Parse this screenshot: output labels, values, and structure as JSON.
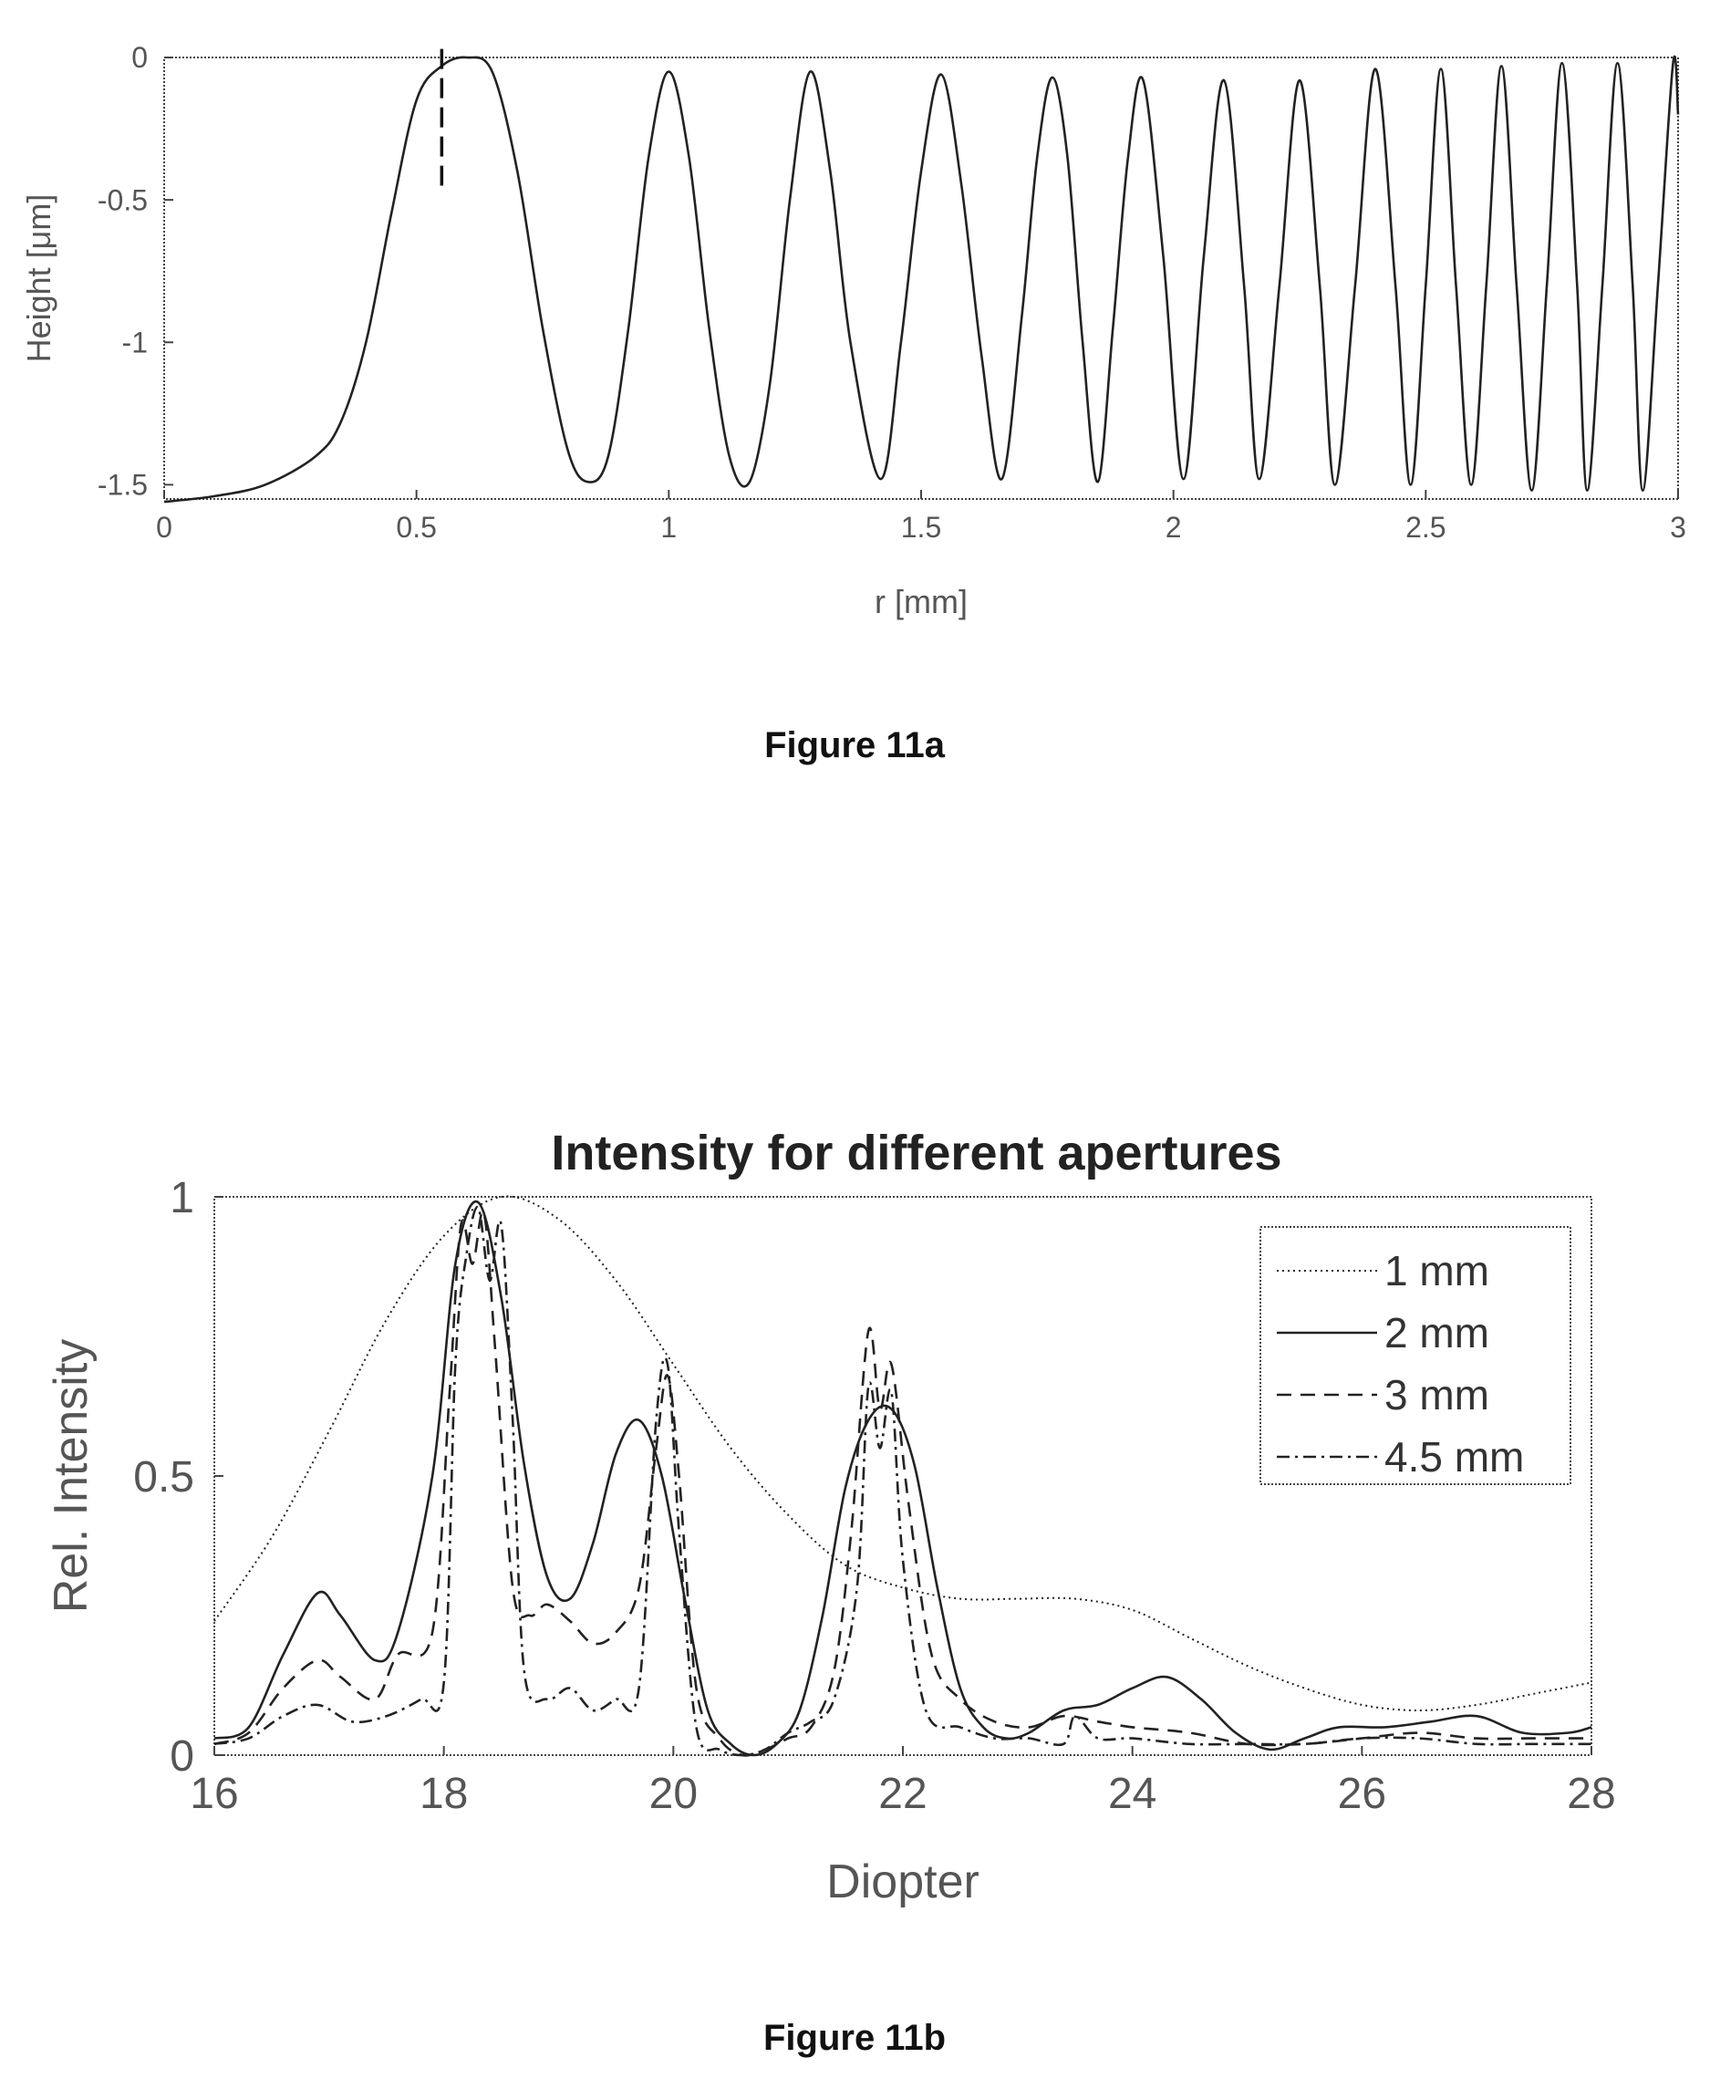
{
  "figures": [
    {
      "caption": "Figure 11a"
    },
    {
      "caption": "Figure 11b"
    }
  ],
  "chart_data": [
    {
      "type": "line",
      "title": "",
      "xlabel": "r [mm]",
      "ylabel": "Height [μm]",
      "xlim": [
        0,
        3
      ],
      "ylim": [
        -1.55,
        0
      ],
      "xticks": [
        0,
        0.5,
        1,
        1.5,
        2,
        2.5,
        3
      ],
      "xtick_labels": [
        "0",
        "0.5",
        "1",
        "1.5",
        "2",
        "2.5",
        "3"
      ],
      "yticks": [
        0,
        -0.5,
        -1,
        -1.5
      ],
      "ytick_labels": [
        "0",
        "-0.5",
        "-1",
        "-1.5"
      ],
      "grid": false,
      "peaks_x": [
        0.6,
        1.0,
        1.28,
        1.54,
        1.76,
        1.94,
        2.1,
        2.25,
        2.4,
        2.53,
        2.65,
        2.77,
        2.88,
        2.99
      ],
      "troughs_x": [
        0.84,
        1.16,
        1.42,
        1.66,
        1.85,
        2.02,
        2.17,
        2.32,
        2.47,
        2.59,
        2.71,
        2.82,
        2.93
      ],
      "marker_x": 0.55,
      "marker_y_range": [
        -0.45,
        0.03
      ],
      "series": [
        {
          "x": [
            0,
            0.1,
            0.2,
            0.3,
            0.35,
            0.4,
            0.45,
            0.5,
            0.55,
            0.6,
            0.65,
            0.7,
            0.75,
            0.8,
            0.84,
            0.88,
            0.92,
            0.96,
            1.0,
            1.04,
            1.08,
            1.12,
            1.16,
            1.2,
            1.24,
            1.28,
            1.32,
            1.36,
            1.42,
            1.46,
            1.5,
            1.54,
            1.58,
            1.62,
            1.66,
            1.7,
            1.73,
            1.76,
            1.79,
            1.82,
            1.85,
            1.88,
            1.91,
            1.94,
            1.98,
            2.02,
            2.06,
            2.1,
            2.14,
            2.17,
            2.21,
            2.25,
            2.29,
            2.32,
            2.36,
            2.4,
            2.44,
            2.47,
            2.5,
            2.53,
            2.56,
            2.59,
            2.62,
            2.65,
            2.68,
            2.71,
            2.74,
            2.77,
            2.8,
            2.82,
            2.85,
            2.88,
            2.91,
            2.93,
            2.96,
            2.99,
            3.0
          ],
          "y": [
            -1.56,
            -1.54,
            -1.5,
            -1.4,
            -1.28,
            -1.0,
            -0.55,
            -0.15,
            -0.03,
            0.0,
            -0.05,
            -0.4,
            -0.95,
            -1.38,
            -1.49,
            -1.4,
            -0.95,
            -0.35,
            -0.05,
            -0.35,
            -0.95,
            -1.4,
            -1.49,
            -1.15,
            -0.5,
            -0.05,
            -0.4,
            -1.0,
            -1.48,
            -1.0,
            -0.4,
            -0.06,
            -0.45,
            -1.05,
            -1.48,
            -0.9,
            -0.35,
            -0.07,
            -0.35,
            -1.0,
            -1.49,
            -0.95,
            -0.35,
            -0.08,
            -0.7,
            -1.48,
            -0.7,
            -0.08,
            -0.8,
            -1.48,
            -0.8,
            -0.08,
            -0.8,
            -1.5,
            -0.8,
            -0.04,
            -0.8,
            -1.5,
            -0.8,
            -0.04,
            -0.8,
            -1.5,
            -0.8,
            -0.03,
            -0.8,
            -1.52,
            -0.8,
            -0.02,
            -0.8,
            -1.52,
            -0.8,
            -0.02,
            -0.8,
            -1.52,
            -0.8,
            -0.02,
            -0.2
          ]
        }
      ]
    },
    {
      "type": "line",
      "title": "Intensity for different apertures",
      "xlabel": "Diopter",
      "ylabel": "Rel. Intensity",
      "xlim": [
        16,
        28
      ],
      "ylim": [
        0,
        1
      ],
      "xticks": [
        16,
        18,
        20,
        22,
        24,
        26,
        28
      ],
      "xtick_labels": [
        "16",
        "18",
        "20",
        "22",
        "24",
        "26",
        "28"
      ],
      "yticks": [
        0,
        0.5,
        1
      ],
      "ytick_labels": [
        "0",
        "0.5",
        "1"
      ],
      "grid": false,
      "legend_position": "top-right",
      "series": [
        {
          "name": "1 mm",
          "style": "dotted",
          "x": [
            16,
            16.5,
            17,
            17.5,
            18,
            18.5,
            19,
            19.5,
            20,
            20.5,
            21,
            21.5,
            22,
            22.5,
            23,
            23.5,
            24,
            24.5,
            25,
            25.5,
            26,
            26.5,
            27,
            27.5,
            28
          ],
          "y": [
            0.24,
            0.39,
            0.58,
            0.78,
            0.93,
            1.0,
            0.96,
            0.85,
            0.7,
            0.55,
            0.43,
            0.34,
            0.3,
            0.28,
            0.28,
            0.28,
            0.26,
            0.21,
            0.16,
            0.12,
            0.09,
            0.08,
            0.09,
            0.11,
            0.13
          ]
        },
        {
          "name": "2 mm",
          "style": "solid",
          "x": [
            16,
            16.3,
            16.6,
            16.9,
            17.1,
            17.4,
            17.6,
            17.9,
            18.1,
            18.3,
            18.5,
            18.7,
            18.9,
            19.1,
            19.3,
            19.5,
            19.7,
            19.9,
            20.1,
            20.3,
            20.5,
            20.7,
            20.9,
            21.1,
            21.3,
            21.5,
            21.7,
            21.9,
            22.1,
            22.3,
            22.5,
            22.7,
            22.9,
            23.1,
            23.4,
            23.7,
            24.0,
            24.3,
            24.6,
            24.9,
            25.2,
            25.5,
            25.8,
            26.2,
            26.6,
            27.0,
            27.4,
            27.8,
            28.0
          ],
          "y": [
            0.03,
            0.05,
            0.18,
            0.29,
            0.25,
            0.17,
            0.22,
            0.5,
            0.88,
            0.99,
            0.82,
            0.52,
            0.32,
            0.28,
            0.38,
            0.54,
            0.6,
            0.5,
            0.28,
            0.08,
            0.02,
            0.0,
            0.02,
            0.08,
            0.25,
            0.48,
            0.6,
            0.62,
            0.52,
            0.3,
            0.12,
            0.05,
            0.03,
            0.04,
            0.08,
            0.09,
            0.12,
            0.14,
            0.1,
            0.04,
            0.01,
            0.03,
            0.05,
            0.05,
            0.06,
            0.07,
            0.04,
            0.04,
            0.05
          ]
        },
        {
          "name": "3 mm",
          "style": "dashed",
          "x": [
            16,
            16.3,
            16.6,
            16.9,
            17.1,
            17.4,
            17.6,
            17.9,
            18.05,
            18.15,
            18.25,
            18.35,
            18.45,
            18.6,
            18.75,
            18.9,
            19.1,
            19.3,
            19.5,
            19.7,
            19.85,
            19.95,
            20.05,
            20.2,
            20.4,
            20.6,
            20.8,
            21.0,
            21.2,
            21.4,
            21.55,
            21.7,
            21.8,
            21.9,
            22.05,
            22.25,
            22.5,
            22.8,
            23.1,
            23.4,
            23.7,
            24.0,
            24.5,
            25.0,
            25.5,
            26.0,
            26.5,
            27.0,
            27.5,
            28.0
          ],
          "y": [
            0.02,
            0.04,
            0.12,
            0.17,
            0.14,
            0.1,
            0.18,
            0.22,
            0.65,
            0.95,
            0.88,
            0.97,
            0.72,
            0.3,
            0.25,
            0.27,
            0.24,
            0.2,
            0.22,
            0.3,
            0.55,
            0.68,
            0.5,
            0.12,
            0.03,
            0.0,
            0.01,
            0.03,
            0.05,
            0.15,
            0.4,
            0.76,
            0.62,
            0.7,
            0.45,
            0.18,
            0.1,
            0.06,
            0.05,
            0.07,
            0.06,
            0.05,
            0.04,
            0.02,
            0.02,
            0.03,
            0.04,
            0.03,
            0.03,
            0.03
          ]
        },
        {
          "name": "4.5 mm",
          "style": "dashdot",
          "x": [
            16,
            16.3,
            16.6,
            16.9,
            17.2,
            17.5,
            17.8,
            18.0,
            18.1,
            18.2,
            18.3,
            18.4,
            18.5,
            18.6,
            18.7,
            18.9,
            19.1,
            19.3,
            19.5,
            19.7,
            19.85,
            19.95,
            20.05,
            20.2,
            20.4,
            20.6,
            20.8,
            21.0,
            21.2,
            21.4,
            21.6,
            21.7,
            21.8,
            21.9,
            22.0,
            22.2,
            22.5,
            22.8,
            23.1,
            23.4,
            23.5,
            23.7,
            24.0,
            24.5,
            25.0,
            25.5,
            26.0,
            26.5,
            27.0,
            27.5,
            28.0
          ],
          "y": [
            0.02,
            0.03,
            0.07,
            0.09,
            0.06,
            0.07,
            0.1,
            0.13,
            0.7,
            0.9,
            0.98,
            0.85,
            0.95,
            0.6,
            0.15,
            0.1,
            0.12,
            0.08,
            0.1,
            0.12,
            0.6,
            0.7,
            0.4,
            0.05,
            0.01,
            0.0,
            0.01,
            0.04,
            0.06,
            0.1,
            0.3,
            0.66,
            0.55,
            0.65,
            0.35,
            0.08,
            0.05,
            0.03,
            0.03,
            0.02,
            0.07,
            0.03,
            0.03,
            0.02,
            0.02,
            0.02,
            0.03,
            0.03,
            0.02,
            0.02,
            0.02
          ]
        }
      ]
    }
  ]
}
